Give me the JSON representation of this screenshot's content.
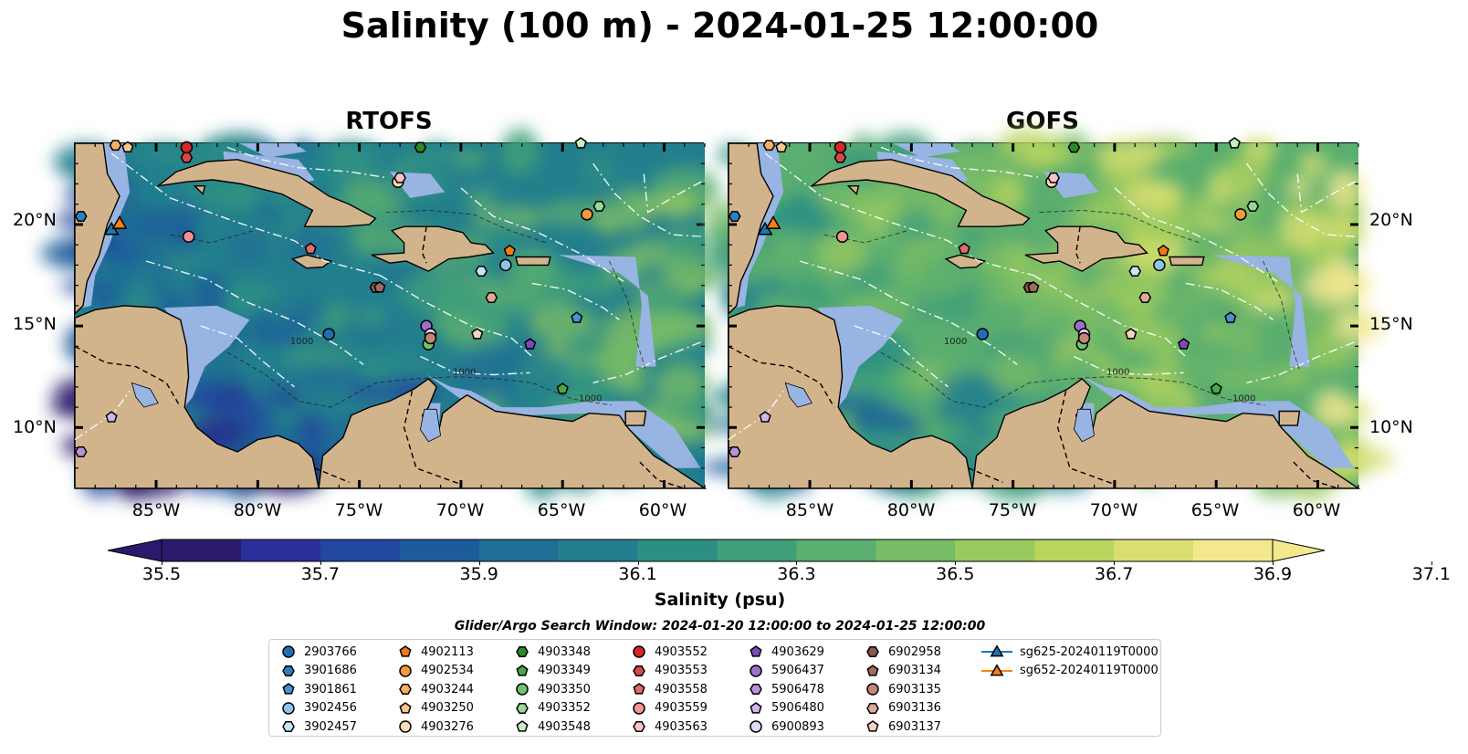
{
  "title": "Salinity (100 m) - 2024-01-25 12:00:00",
  "panels": [
    {
      "title": "RTOFS",
      "palette_bias": 0.0
    },
    {
      "title": "GOFS",
      "palette_bias": 0.35
    }
  ],
  "lat_ticks": [
    "20°N",
    "15°N",
    "10°N"
  ],
  "lon_ticks": [
    "85°W",
    "80°W",
    "75°W",
    "70°W",
    "65°W",
    "60°W"
  ],
  "map_extent": {
    "lon": [
      -89,
      -58
    ],
    "lat": [
      7,
      24
    ]
  },
  "contour_labels": [
    "1000",
    "1000",
    "1000"
  ],
  "colorbar": {
    "ticks": [
      "35.5",
      "35.7",
      "35.9",
      "36.1",
      "36.3",
      "36.5",
      "36.7",
      "36.9",
      "37.1"
    ],
    "label": "Salinity (psu)",
    "colors": [
      "#2b1a6b",
      "#2b2f9a",
      "#22479e",
      "#1d5c9a",
      "#1f6e95",
      "#237f8d",
      "#2c8f84",
      "#3f9f79",
      "#5aae6f",
      "#78bc66",
      "#98c95f",
      "#b8d55d",
      "#d8df70",
      "#f3e88e"
    ]
  },
  "search_window": "Glider/Argo Search Window: 2024-01-20 12:00:00 to 2024-01-25 12:00:00",
  "colors": {
    "land": "#d2b48c",
    "shallow": "#98b4e2",
    "ocean_deep": "#241a5e"
  },
  "legend": [
    {
      "label": "2903766",
      "marker": "circle",
      "color": "#1f6fb4"
    },
    {
      "label": "3901686",
      "marker": "hexagon",
      "color": "#2e7fc0"
    },
    {
      "label": "3901861",
      "marker": "pentagon",
      "color": "#4a90d0"
    },
    {
      "label": "3902456",
      "marker": "circle",
      "color": "#8ec4ec"
    },
    {
      "label": "3902457",
      "marker": "hexagon",
      "color": "#c6e5f8"
    },
    {
      "label": "4902113",
      "marker": "pentagon",
      "color": "#f07b13"
    },
    {
      "label": "4902534",
      "marker": "circle",
      "color": "#f59a3a"
    },
    {
      "label": "4903244",
      "marker": "hexagon",
      "color": "#f8b060"
    },
    {
      "label": "4903250",
      "marker": "pentagon",
      "color": "#f9c58e"
    },
    {
      "label": "4903276",
      "marker": "circle",
      "color": "#fcdcb8"
    },
    {
      "label": "4903348",
      "marker": "hexagon",
      "color": "#2a8a2a"
    },
    {
      "label": "4903349",
      "marker": "pentagon",
      "color": "#46a846"
    },
    {
      "label": "4903350",
      "marker": "circle",
      "color": "#6cc56c"
    },
    {
      "label": "4903352",
      "marker": "hexagon",
      "color": "#96d896"
    },
    {
      "label": "4903548",
      "marker": "pentagon",
      "color": "#c6ecc0"
    },
    {
      "label": "4903552",
      "marker": "circle",
      "color": "#d62728"
    },
    {
      "label": "4903553",
      "marker": "hexagon",
      "color": "#d94848"
    },
    {
      "label": "4903558",
      "marker": "pentagon",
      "color": "#e46a6a"
    },
    {
      "label": "4903559",
      "marker": "circle",
      "color": "#f09494"
    },
    {
      "label": "4903563",
      "marker": "hexagon",
      "color": "#f8c4c4"
    },
    {
      "label": "4903629",
      "marker": "pentagon",
      "color": "#7d4bb8"
    },
    {
      "label": "5906437",
      "marker": "circle",
      "color": "#9b6fcc"
    },
    {
      "label": "5906478",
      "marker": "hexagon",
      "color": "#b592dc"
    },
    {
      "label": "5906480",
      "marker": "pentagon",
      "color": "#cfb6ec"
    },
    {
      "label": "6900893",
      "marker": "circle",
      "color": "#e4d6f6"
    },
    {
      "label": "6902958",
      "marker": "hexagon",
      "color": "#8c564b"
    },
    {
      "label": "6903134",
      "marker": "pentagon",
      "color": "#a06a60"
    },
    {
      "label": "6903135",
      "marker": "circle",
      "color": "#c48676"
    },
    {
      "label": "6903136",
      "marker": "hexagon",
      "color": "#e2a898"
    },
    {
      "label": "6903137",
      "marker": "pentagon",
      "color": "#f8d0c4"
    },
    {
      "label": "sg625-20240119T0000",
      "marker": "triangle-line",
      "color": "#1f77b4"
    },
    {
      "label": "sg652-20240119T0000",
      "marker": "triangle-line",
      "color": "#ff7f0e"
    }
  ],
  "stations": [
    {
      "id": "2903766",
      "lon": -76.5,
      "lat": 14.6
    },
    {
      "id": "3901686",
      "lon": -88.7,
      "lat": 20.4
    },
    {
      "id": "3901861",
      "lon": -64.3,
      "lat": 15.4
    },
    {
      "id": "3902456",
      "lon": -67.8,
      "lat": 18.0
    },
    {
      "id": "3902457",
      "lon": -69.0,
      "lat": 17.7
    },
    {
      "id": "4902113",
      "lon": -67.6,
      "lat": 18.7
    },
    {
      "id": "4902534",
      "lon": -63.8,
      "lat": 20.5
    },
    {
      "id": "4903244",
      "lon": -87.0,
      "lat": 23.9
    },
    {
      "id": "4903250",
      "lon": -86.4,
      "lat": 23.8
    },
    {
      "id": "4903276",
      "lon": -73.1,
      "lat": 22.1
    },
    {
      "id": "4903348",
      "lon": -72.0,
      "lat": 23.8
    },
    {
      "id": "4903349",
      "lon": -65.0,
      "lat": 11.9
    },
    {
      "id": "4903350",
      "lon": -71.6,
      "lat": 14.1
    },
    {
      "id": "4903352",
      "lon": -63.2,
      "lat": 20.9
    },
    {
      "id": "4903548",
      "lon": -64.1,
      "lat": 24.0
    },
    {
      "id": "4903552",
      "lon": -83.5,
      "lat": 23.8
    },
    {
      "id": "4903553",
      "lon": -83.5,
      "lat": 23.3
    },
    {
      "id": "4903558",
      "lon": -77.4,
      "lat": 18.8
    },
    {
      "id": "4903559",
      "lon": -83.4,
      "lat": 19.4
    },
    {
      "id": "4903563",
      "lon": -73.0,
      "lat": 22.3
    },
    {
      "id": "4903629",
      "lon": -66.6,
      "lat": 14.1
    },
    {
      "id": "5906437",
      "lon": -71.7,
      "lat": 15.0
    },
    {
      "id": "5906478",
      "lon": -88.7,
      "lat": 8.8
    },
    {
      "id": "5906480",
      "lon": -87.2,
      "lat": 10.5
    },
    {
      "id": "6900893",
      "lon": -71.5,
      "lat": 14.6
    },
    {
      "id": "6902958",
      "lon": -74.2,
      "lat": 16.9
    },
    {
      "id": "6903134",
      "lon": -74.0,
      "lat": 16.9
    },
    {
      "id": "6903135",
      "lon": -71.5,
      "lat": 14.4
    },
    {
      "id": "6903136",
      "lon": -68.5,
      "lat": 16.4
    },
    {
      "id": "6903137",
      "lon": -69.2,
      "lat": 14.6
    },
    {
      "id": "sg625-20240119T0000",
      "lon": -87.2,
      "lat": 19.7
    },
    {
      "id": "sg652-20240119T0000",
      "lon": -86.8,
      "lat": 20.0
    }
  ]
}
